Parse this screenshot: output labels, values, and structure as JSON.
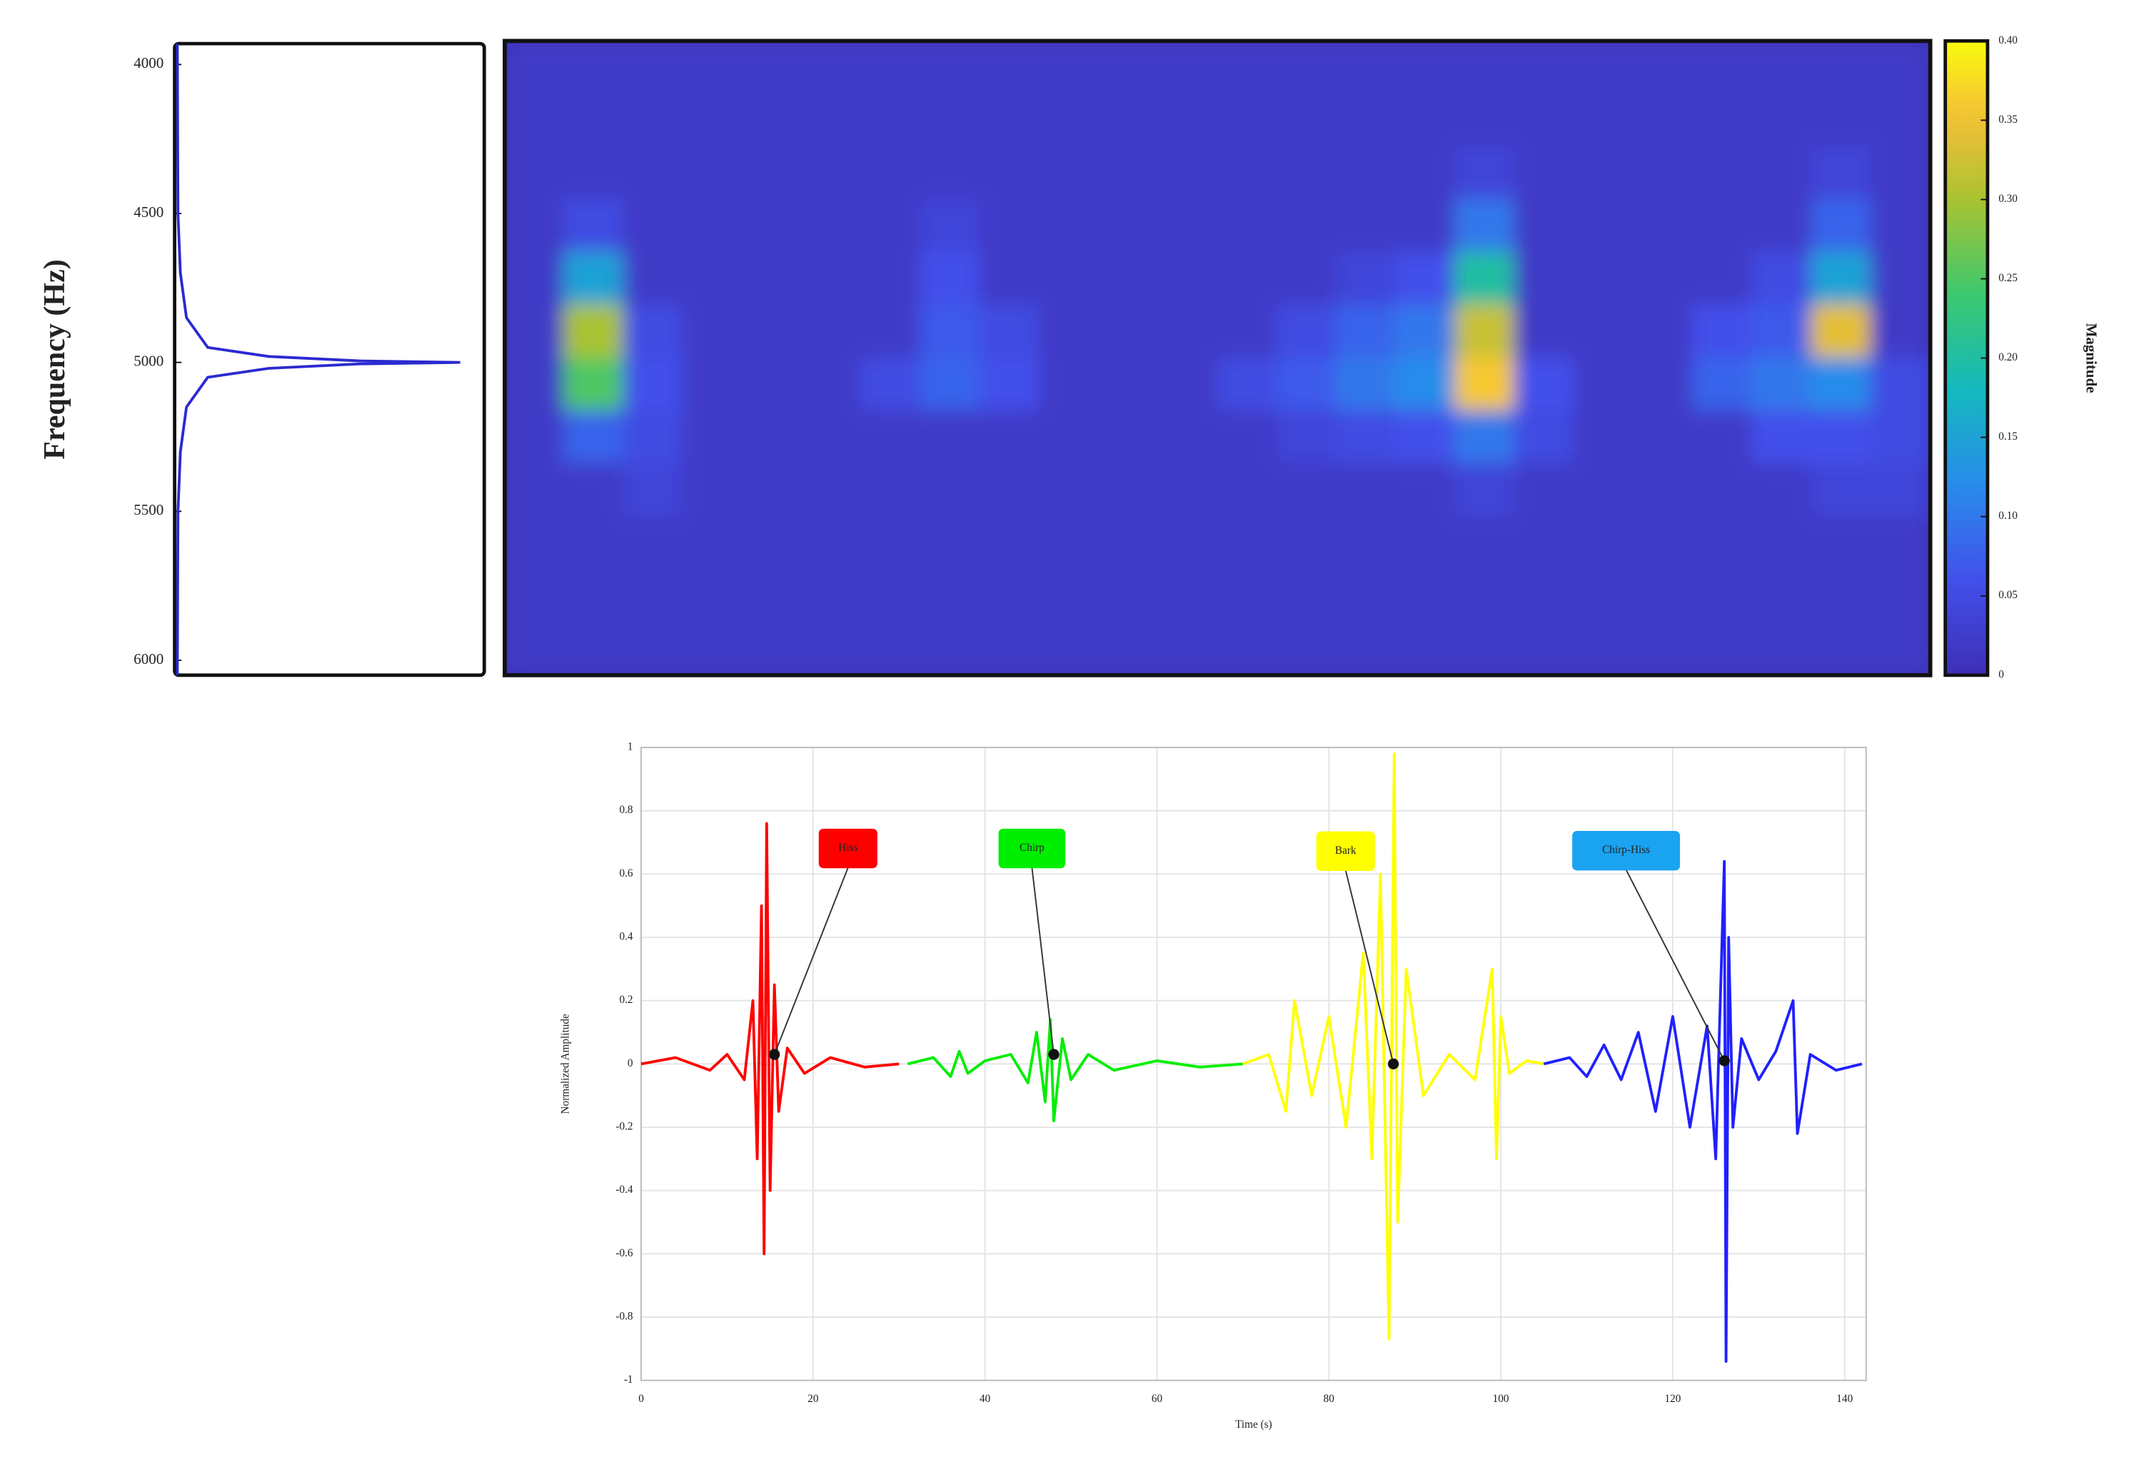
{
  "chart_data": [
    {
      "type": "line",
      "ylabel": "Frequency (Hz)",
      "color": "#2a2ad0",
      "y": [
        3930,
        4500,
        4700,
        4850,
        4950,
        4980,
        4995,
        5000,
        5005,
        5020,
        5050,
        5150,
        5300,
        5500,
        6050
      ],
      "values": [
        0,
        0.002,
        0.01,
        0.03,
        0.1,
        0.3,
        0.6,
        0.93,
        0.6,
        0.3,
        0.1,
        0.03,
        0.01,
        0.002,
        0
      ],
      "xlim": [
        0,
        1
      ],
      "ylim": [
        6050,
        3930
      ],
      "yticks": [
        4000,
        4500,
        5000,
        5500,
        6000
      ]
    },
    {
      "type": "heatmap",
      "colormap": "parula",
      "colorbar_label": "Magnitude",
      "zlim": [
        0,
        0.4
      ],
      "zticks": [
        0,
        0.05,
        {
          "value": 0.1,
          "label": "0.10"
        },
        0.15,
        {
          "value": 0.2,
          "label": "0.20"
        },
        0.25,
        {
          "value": 0.3,
          "label": "0.30"
        },
        0.35,
        {
          "value": 0.4,
          "label": "0.40"
        }
      ],
      "z": [
        [
          0.02,
          0.02,
          0.02,
          0.02,
          0.02,
          0.02,
          0.02,
          0.02,
          0.02,
          0.02,
          0.02,
          0.02,
          0.02,
          0.02,
          0.02,
          0.02,
          0.02,
          0.02,
          0.02,
          0.02,
          0.02,
          0.02,
          0.02,
          0.02
        ],
        [
          0.02,
          0.02,
          0.02,
          0.02,
          0.02,
          0.02,
          0.02,
          0.02,
          0.02,
          0.02,
          0.02,
          0.02,
          0.02,
          0.02,
          0.02,
          0.02,
          0.02,
          0.02,
          0.02,
          0.02,
          0.02,
          0.02,
          0.02,
          0.02
        ],
        [
          0.02,
          0.02,
          0.02,
          0.02,
          0.02,
          0.02,
          0.02,
          0.02,
          0.02,
          0.02,
          0.02,
          0.02,
          0.02,
          0.02,
          0.02,
          0.02,
          0.04,
          0.02,
          0.02,
          0.02,
          0.02,
          0.02,
          0.04,
          0.02
        ],
        [
          0.02,
          0.05,
          0.02,
          0.02,
          0.02,
          0.02,
          0.02,
          0.04,
          0.02,
          0.02,
          0.02,
          0.02,
          0.02,
          0.02,
          0.02,
          0.02,
          0.1,
          0.02,
          0.02,
          0.02,
          0.02,
          0.02,
          0.08,
          0.02
        ],
        [
          0.02,
          0.15,
          0.02,
          0.02,
          0.02,
          0.02,
          0.02,
          0.06,
          0.02,
          0.02,
          0.02,
          0.02,
          0.02,
          0.02,
          0.04,
          0.06,
          0.2,
          0.02,
          0.02,
          0.02,
          0.02,
          0.05,
          0.15,
          0.02
        ],
        [
          0.02,
          0.3,
          0.05,
          0.02,
          0.02,
          0.02,
          0.02,
          0.07,
          0.05,
          0.02,
          0.02,
          0.02,
          0.02,
          0.05,
          0.08,
          0.1,
          0.32,
          0.02,
          0.02,
          0.02,
          0.06,
          0.07,
          0.34,
          0.02
        ],
        [
          0.02,
          0.25,
          0.06,
          0.02,
          0.02,
          0.02,
          0.05,
          0.08,
          0.06,
          0.02,
          0.02,
          0.02,
          0.05,
          0.07,
          0.1,
          0.12,
          0.36,
          0.06,
          0.02,
          0.02,
          0.08,
          0.1,
          0.12,
          0.05
        ],
        [
          0.02,
          0.08,
          0.05,
          0.02,
          0.02,
          0.02,
          0.02,
          0.02,
          0.02,
          0.02,
          0.02,
          0.02,
          0.02,
          0.04,
          0.05,
          0.06,
          0.1,
          0.05,
          0.02,
          0.02,
          0.02,
          0.06,
          0.06,
          0.05
        ],
        [
          0.02,
          0.02,
          0.04,
          0.02,
          0.02,
          0.02,
          0.02,
          0.02,
          0.02,
          0.02,
          0.02,
          0.02,
          0.02,
          0.02,
          0.02,
          0.02,
          0.04,
          0.02,
          0.02,
          0.02,
          0.02,
          0.02,
          0.04,
          0.04
        ],
        [
          0.02,
          0.02,
          0.02,
          0.02,
          0.02,
          0.02,
          0.02,
          0.02,
          0.02,
          0.02,
          0.02,
          0.02,
          0.02,
          0.02,
          0.02,
          0.02,
          0.02,
          0.02,
          0.02,
          0.02,
          0.02,
          0.02,
          0.02,
          0.02
        ],
        [
          0.02,
          0.02,
          0.02,
          0.02,
          0.02,
          0.02,
          0.02,
          0.02,
          0.02,
          0.02,
          0.02,
          0.02,
          0.02,
          0.02,
          0.02,
          0.02,
          0.02,
          0.02,
          0.02,
          0.02,
          0.02,
          0.02,
          0.02,
          0.02
        ],
        [
          0.02,
          0.02,
          0.02,
          0.02,
          0.02,
          0.02,
          0.02,
          0.02,
          0.02,
          0.02,
          0.02,
          0.02,
          0.02,
          0.02,
          0.02,
          0.02,
          0.02,
          0.02,
          0.02,
          0.02,
          0.02,
          0.02,
          0.02,
          0.02
        ]
      ]
    },
    {
      "type": "line",
      "xlabel": "Time (s)",
      "ylabel": "Normalized Amplitude",
      "xlim": [
        0,
        142.5
      ],
      "ylim": [
        -1,
        1
      ],
      "xticks": [
        0,
        20,
        40,
        60,
        80,
        100,
        120,
        140
      ],
      "yticks": [
        1,
        0.8,
        0.6,
        0.4,
        0.2,
        0,
        -0.2,
        -0.4,
        -0.6,
        -0.8,
        -1
      ],
      "grid": true,
      "series": [
        {
          "color": "#ff0000",
          "x": [
            0,
            4,
            8,
            10,
            12,
            13,
            13.5,
            14,
            14.3,
            14.6,
            15,
            15.5,
            16,
            17,
            19,
            22,
            26,
            30
          ],
          "values": [
            0,
            0.02,
            -0.02,
            0.03,
            -0.05,
            0.2,
            -0.3,
            0.5,
            -0.6,
            0.76,
            -0.4,
            0.25,
            -0.15,
            0.05,
            -0.03,
            0.02,
            -0.01,
            0
          ]
        },
        {
          "color": "#00ee00",
          "x": [
            31,
            34,
            36,
            37,
            38,
            40,
            43,
            45,
            46,
            47,
            47.6,
            48,
            49,
            50,
            52,
            55,
            60,
            65,
            70
          ],
          "values": [
            0,
            0.02,
            -0.04,
            0.04,
            -0.03,
            0.01,
            0.03,
            -0.06,
            0.1,
            -0.12,
            0.14,
            -0.18,
            0.08,
            -0.05,
            0.03,
            -0.02,
            0.01,
            -0.01,
            0
          ]
        },
        {
          "color": "#ffff00",
          "x": [
            70,
            73,
            75,
            76,
            78,
            80,
            82,
            84,
            85,
            86,
            87,
            87.6,
            88,
            89,
            91,
            94,
            97,
            99,
            99.5,
            100,
            101,
            103,
            105
          ],
          "values": [
            0,
            0.03,
            -0.15,
            0.2,
            -0.1,
            0.15,
            -0.2,
            0.35,
            -0.3,
            0.6,
            -0.87,
            0.98,
            -0.5,
            0.3,
            -0.1,
            0.03,
            -0.05,
            0.3,
            -0.3,
            0.15,
            -0.03,
            0.01,
            0
          ]
        },
        {
          "color": "#2020ff",
          "x": [
            105,
            108,
            110,
            112,
            114,
            116,
            118,
            120,
            122,
            124,
            125,
            126,
            126.2,
            126.5,
            127,
            128,
            130,
            132,
            134,
            134.5,
            136,
            139,
            142
          ],
          "values": [
            0,
            0.02,
            -0.04,
            0.06,
            -0.05,
            0.1,
            -0.15,
            0.15,
            -0.2,
            0.12,
            -0.3,
            0.64,
            -0.94,
            0.4,
            -0.2,
            0.08,
            -0.05,
            0.04,
            0.2,
            -0.22,
            0.03,
            -0.02,
            0
          ]
        }
      ],
      "annotations": [
        {
          "text": "Hiss",
          "color": "#ff0000",
          "x": 15.5,
          "y": 0.03
        },
        {
          "text": "Chirp",
          "color": "#00ee00",
          "x": 48,
          "y": 0.03
        },
        {
          "text": "Bark",
          "color": "#ffff00",
          "x": 87.5,
          "y": 0
        },
        {
          "text": "Chirp-Hiss",
          "color": "#1aa3f0",
          "x": 126,
          "y": 0.01
        }
      ]
    }
  ]
}
